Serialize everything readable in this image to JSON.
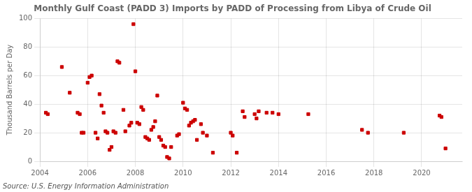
{
  "chart_data": {
    "type": "scatter",
    "title": "Monthly Gulf Coast (PADD 3) Imports by PADD of Processing from Libya of Crude Oil",
    "ylabel": "Thousand Barrels per Day",
    "annotations": [
      "Source: U.S. Energy Information Administration"
    ],
    "color": "#cc0000",
    "marker": "square",
    "grid": true,
    "xlim": [
      2004.0,
      2021.7
    ],
    "xticks": [
      2004,
      2006,
      2008,
      2010,
      2012,
      2014,
      2016,
      2018,
      2020
    ],
    "ylim": [
      0,
      100
    ],
    "yticks": [
      0,
      20,
      40,
      60,
      80,
      100
    ],
    "x": [
      2004.25,
      2004.33,
      2004.92,
      2005.25,
      2005.58,
      2005.67,
      2005.75,
      2005.83,
      2006.0,
      2006.08,
      2006.17,
      2006.33,
      2006.42,
      2006.5,
      2006.58,
      2006.67,
      2006.75,
      2006.83,
      2006.92,
      2007.0,
      2007.08,
      2007.17,
      2007.25,
      2007.33,
      2007.5,
      2007.58,
      2007.75,
      2007.83,
      2007.92,
      2008.0,
      2008.08,
      2008.17,
      2008.25,
      2008.33,
      2008.42,
      2008.5,
      2008.58,
      2008.67,
      2008.75,
      2008.83,
      2008.92,
      2009.0,
      2009.08,
      2009.17,
      2009.25,
      2009.33,
      2009.42,
      2009.5,
      2009.75,
      2009.83,
      2010.0,
      2010.08,
      2010.17,
      2010.25,
      2010.33,
      2010.42,
      2010.5,
      2010.58,
      2010.75,
      2010.83,
      2011.0,
      2011.25,
      2012.0,
      2012.08,
      2012.25,
      2012.5,
      2012.58,
      2013.0,
      2013.08,
      2013.17,
      2013.5,
      2013.75,
      2014.0,
      2015.25,
      2017.5,
      2017.75,
      2019.25,
      2020.75,
      2020.83,
      2021.0
    ],
    "values": [
      34,
      33,
      66,
      48,
      34,
      33,
      20,
      20,
      55,
      59,
      60,
      20,
      16,
      47,
      39,
      34,
      21,
      20,
      8,
      10,
      21,
      20,
      70,
      69,
      36,
      21,
      25,
      27,
      96,
      63,
      27,
      26,
      38,
      36,
      17,
      16,
      15,
      22,
      24,
      28,
      46,
      17,
      15,
      11,
      10,
      3,
      2,
      10,
      18,
      19,
      41,
      37,
      36,
      25,
      27,
      28,
      29,
      15,
      26,
      20,
      18,
      6,
      20,
      18,
      6,
      35,
      31,
      33,
      30,
      35,
      34,
      34,
      33,
      33,
      22,
      20,
      20,
      32,
      31,
      9
    ]
  }
}
